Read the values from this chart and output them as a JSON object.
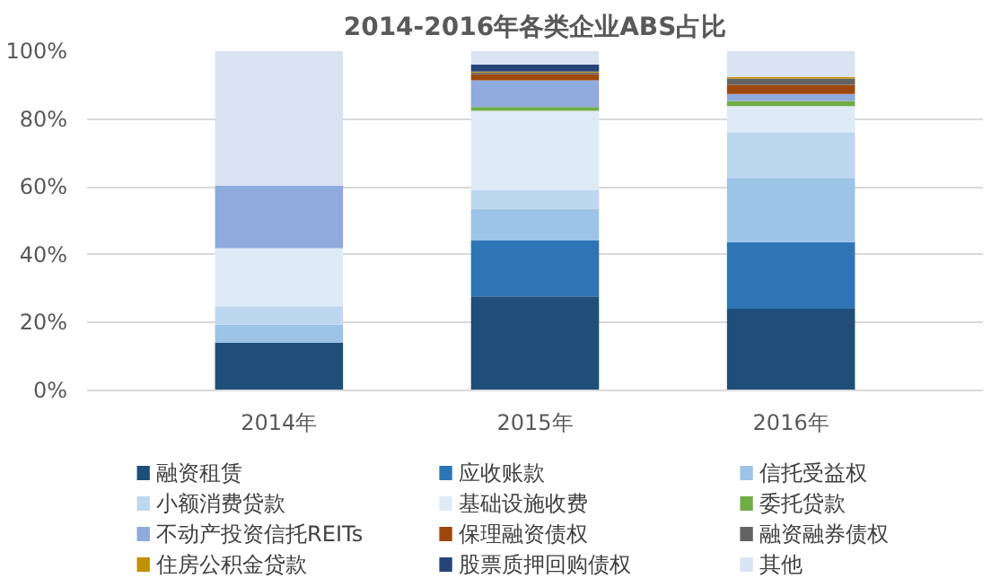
{
  "chart_data": {
    "type": "bar",
    "stacked": true,
    "title": "2014-2016年各类企业ABS占比",
    "categories": [
      "2014年",
      "2015年",
      "2016年"
    ],
    "ylim": [
      0,
      100
    ],
    "yticks": [
      {
        "value": 0,
        "label": "0%"
      },
      {
        "value": 20,
        "label": "20%"
      },
      {
        "value": 40,
        "label": "40%"
      },
      {
        "value": 60,
        "label": "60%"
      },
      {
        "value": 80,
        "label": "80%"
      },
      {
        "value": 100,
        "label": "100%"
      }
    ],
    "grid": "y",
    "legend": "bottom",
    "series": [
      {
        "name": "融资租赁",
        "color": "#1f4e79",
        "values": [
          14.0,
          27.7,
          24.1
        ]
      },
      {
        "name": "应收账款",
        "color": "#2e75b6",
        "values": [
          0,
          16.5,
          19.6
        ]
      },
      {
        "name": "信托受益权",
        "color": "#9dc3e6",
        "values": [
          5.4,
          9.4,
          18.9
        ]
      },
      {
        "name": "小额消费贷款",
        "color": "#bdd7ee",
        "values": [
          5.4,
          5.4,
          13.5
        ]
      },
      {
        "name": "基础设施收费",
        "color": "#deebf7",
        "values": [
          17.1,
          23.4,
          7.7
        ]
      },
      {
        "name": "委托贷款",
        "color": "#70ad47",
        "values": [
          0,
          1.1,
          1.5
        ]
      },
      {
        "name": "不动产投资信托REITs",
        "color": "#8faadc",
        "values": [
          18.5,
          7.9,
          2.1
        ]
      },
      {
        "name": "保理融资债权",
        "color": "#9e480e",
        "values": [
          0,
          1.8,
          2.7
        ]
      },
      {
        "name": "融资融券债权",
        "color": "#636363",
        "values": [
          0,
          0.5,
          1.8
        ]
      },
      {
        "name": "住房公积金贷款",
        "color": "#bf9000",
        "values": [
          0,
          0.3,
          0.5
        ]
      },
      {
        "name": "股票质押回购债权",
        "color": "#264478",
        "values": [
          0,
          2.0,
          0
        ]
      },
      {
        "name": "其他",
        "color": "#dae3f3",
        "values": [
          39.6,
          4.0,
          7.6
        ]
      }
    ]
  }
}
